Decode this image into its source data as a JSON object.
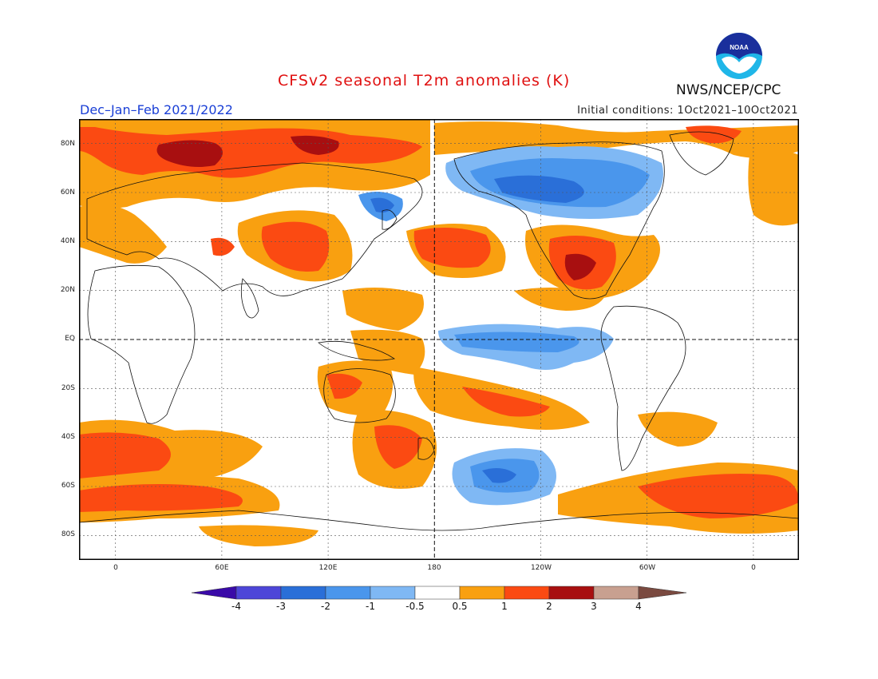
{
  "header": {
    "title": "CFSv2 seasonal T2m anomalies (K)",
    "period": "Dec–Jan–Feb 2021/2022",
    "initial_conditions": "Initial conditions: 1Oct2021–10Oct2021",
    "agency": "NWS/NCEP/CPC",
    "logo_text": "NOAA"
  },
  "map": {
    "y_ticks": [
      "80N",
      "60N",
      "40N",
      "20N",
      "EQ",
      "20S",
      "40S",
      "60S",
      "80S"
    ],
    "x_ticks": [
      "0",
      "60E",
      "120E",
      "180",
      "120W",
      "60W",
      "0"
    ],
    "projection": "cylindrical equidistant, centered 180",
    "reference_lines": [
      "equator",
      "dateline"
    ]
  },
  "legend": {
    "labels": [
      "-4",
      "-3",
      "-2",
      "-1",
      "-0.5",
      "0.5",
      "1",
      "2",
      "3",
      "4"
    ],
    "colors": [
      "#3a0aa8",
      "#4d46d8",
      "#2a6fd8",
      "#4a96ec",
      "#7fb8f4",
      "#ffffff",
      "#f9a010",
      "#fb4a12",
      "#a80f10",
      "#c8a090",
      "#7a4a40"
    ],
    "unit": "K"
  },
  "colors": {
    "title": "#e01010",
    "period": "#1a3fd6",
    "neg_weak": "#7fb8f4",
    "neg_mid": "#4a96ec",
    "neg_strong": "#2a6fd8",
    "neg_max": "#4d46d8",
    "pos_weak": "#f9a010",
    "pos_mid": "#fb4a12",
    "pos_strong": "#a80f10"
  }
}
